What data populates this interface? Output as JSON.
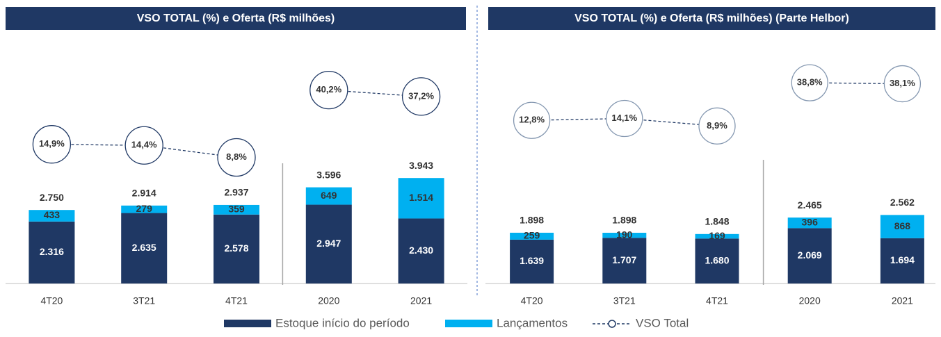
{
  "chart_data": [
    {
      "type": "bar",
      "title": "VSO TOTAL (%) e Oferta (R$ milhões)",
      "categories": [
        "4T20",
        "3T21",
        "4T21",
        "2020",
        "2021"
      ],
      "series": [
        {
          "name": "Estoque início do período",
          "color": "#1f3864",
          "values": [
            2316,
            2635,
            2578,
            2947,
            2430
          ],
          "value_labels": [
            "2.316",
            "2.635",
            "2.578",
            "2.947",
            "2.430"
          ]
        },
        {
          "name": "Lançamentos",
          "color": "#00b0f0",
          "values": [
            433,
            279,
            359,
            649,
            1514
          ],
          "value_labels": [
            "433",
            "279",
            "359",
            "649",
            "1.514"
          ]
        },
        {
          "name": "VSO Total",
          "type": "line",
          "axis": "y2",
          "color": "#1f3864",
          "values": [
            14.9,
            14.4,
            8.8,
            40.2,
            37.2
          ],
          "value_labels": [
            "14,9%",
            "14,4%",
            "8,8%",
            "40,2%",
            "37,2%"
          ]
        }
      ],
      "totals": [
        2750,
        2914,
        2937,
        3596,
        3943
      ],
      "total_labels": [
        "2.750",
        "2.914",
        "2.937",
        "3.596",
        "3.943"
      ],
      "ylim": [
        0,
        9300
      ],
      "y2lim": [
        -50,
        66
      ]
    },
    {
      "type": "bar",
      "title": "VSO TOTAL (%) e Oferta (R$ milhões) (Parte Helbor)",
      "categories": [
        "4T20",
        "3T21",
        "4T21",
        "2020",
        "2021"
      ],
      "series": [
        {
          "name": "Estoque início do período",
          "color": "#1f3864",
          "values": [
            1639,
            1707,
            1680,
            2069,
            1694
          ],
          "value_labels": [
            "1.639",
            "1.707",
            "1.680",
            "2.069",
            "1.694"
          ]
        },
        {
          "name": "Lançamentos",
          "color": "#00b0f0",
          "values": [
            259,
            190,
            169,
            396,
            868
          ],
          "value_labels": [
            "259",
            "190",
            "169",
            "396",
            "868"
          ]
        },
        {
          "name": "VSO Total",
          "type": "line",
          "axis": "y2",
          "color": "#8497b0",
          "values": [
            12.8,
            14.1,
            8.9,
            38.8,
            38.1
          ],
          "value_labels": [
            "12,8%",
            "14,1%",
            "8,9%",
            "38,8%",
            "38,1%"
          ]
        }
      ],
      "totals": [
        1898,
        1898,
        1848,
        2465,
        2562
      ],
      "total_labels": [
        "1.898",
        "1.898",
        "1.848",
        "2.465",
        "2.562"
      ],
      "ylim": [
        0,
        9300
      ],
      "y2lim": [
        -100,
        72
      ]
    }
  ]
}
